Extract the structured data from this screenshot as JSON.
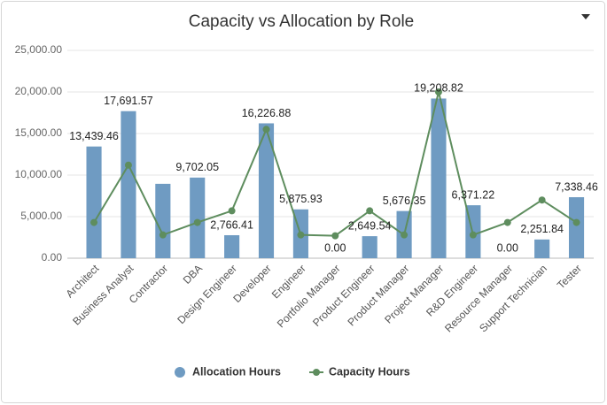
{
  "chart_data": {
    "type": "bar",
    "title": "Capacity vs Allocation by Role",
    "categories": [
      "Architect",
      "Business Analyst",
      "Contractor",
      "DBA",
      "Design Engineer",
      "Developer",
      "Engineer",
      "Portfolio Manager",
      "Product Engineer",
      "Product Manager",
      "Project Manager",
      "R&D Engineer",
      "Resource Manager",
      "Support Technician",
      "Tester"
    ],
    "series": [
      {
        "name": "Allocation Hours",
        "type": "bar",
        "color": "#6f9bc2",
        "values": [
          13439.46,
          17691.57,
          8950,
          9702.05,
          2766.41,
          16226.88,
          5875.93,
          0,
          2649.54,
          5676.35,
          19208.82,
          6371.22,
          0,
          2251.84,
          7338.46
        ],
        "value_labels": [
          "13,439.46",
          "17,691.57",
          null,
          "9,702.05",
          "2,766.41",
          "16,226.88",
          "5,875.93",
          "0.00",
          "2,649.54",
          "5,676.35",
          "19,208.82",
          "6,371.22",
          "0.00",
          "2,251.84",
          "7,338.46"
        ]
      },
      {
        "name": "Capacity Hours",
        "type": "line",
        "color": "#5e8d5e",
        "values": [
          4300,
          11200,
          2800,
          4300,
          5700,
          15500,
          2800,
          2700,
          5700,
          2800,
          20000,
          2800,
          4300,
          7000,
          4300
        ]
      }
    ],
    "ylim": [
      0,
      25000
    ],
    "yticks": [
      {
        "value": 0,
        "label": "0.00"
      },
      {
        "value": 5000,
        "label": "5,000.00"
      },
      {
        "value": 10000,
        "label": "10,000.00"
      },
      {
        "value": 15000,
        "label": "15,000.00"
      },
      {
        "value": 20000,
        "label": "20,000.00"
      },
      {
        "value": 25000,
        "label": "25,000.00"
      }
    ],
    "grid": true
  }
}
